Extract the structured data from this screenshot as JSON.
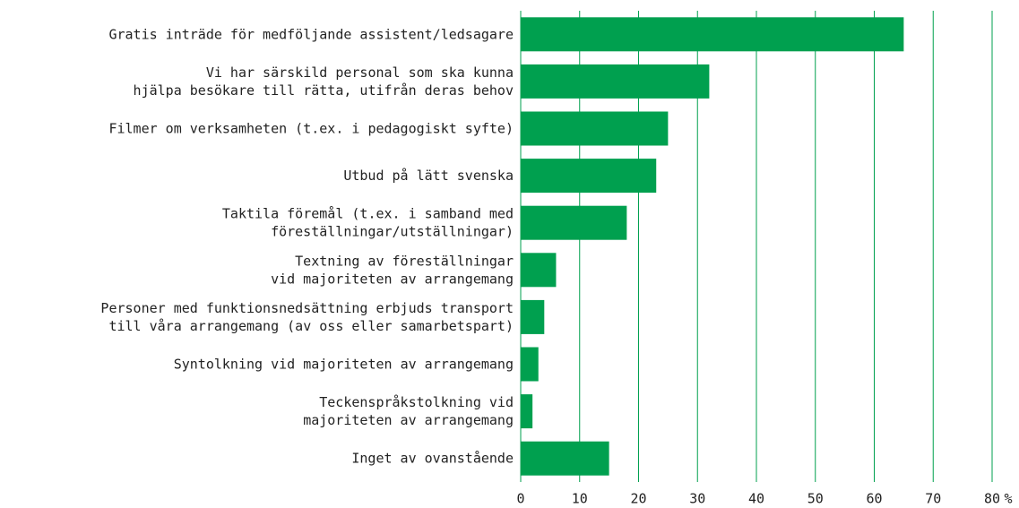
{
  "chart_data": {
    "type": "barh",
    "categories": [
      [
        "Gratis inträde för medföljande assistent/ledsagare"
      ],
      [
        "Vi har särskild personal som ska kunna",
        "hjälpa besökare till rätta, utifrån deras behov"
      ],
      [
        "Filmer om verksamheten (t.ex. i pedagogiskt syfte)"
      ],
      [
        "Utbud på lätt svenska"
      ],
      [
        "Taktila föremål (t.ex. i samband med",
        "föreställningar/utställningar)"
      ],
      [
        "Textning av föreställningar",
        "vid majoriteten av arrangemang"
      ],
      [
        "Personer med funktionsnedsättning erbjuds transport",
        "till våra arrangemang (av oss eller samarbetspart)"
      ],
      [
        "Syntolkning vid majoriteten av arrangemang"
      ],
      [
        "Teckenspråkstolkning vid",
        "majoriteten av arrangemang"
      ],
      [
        "Inget av ovanstående"
      ]
    ],
    "values": [
      65,
      32,
      25,
      23,
      18,
      6,
      4,
      3,
      2,
      15
    ],
    "color": "#00a04f",
    "xlim": [
      0,
      80
    ],
    "xticks": [
      0,
      10,
      20,
      30,
      40,
      50,
      60,
      70,
      80
    ],
    "xlabel": "%",
    "grid": true
  }
}
